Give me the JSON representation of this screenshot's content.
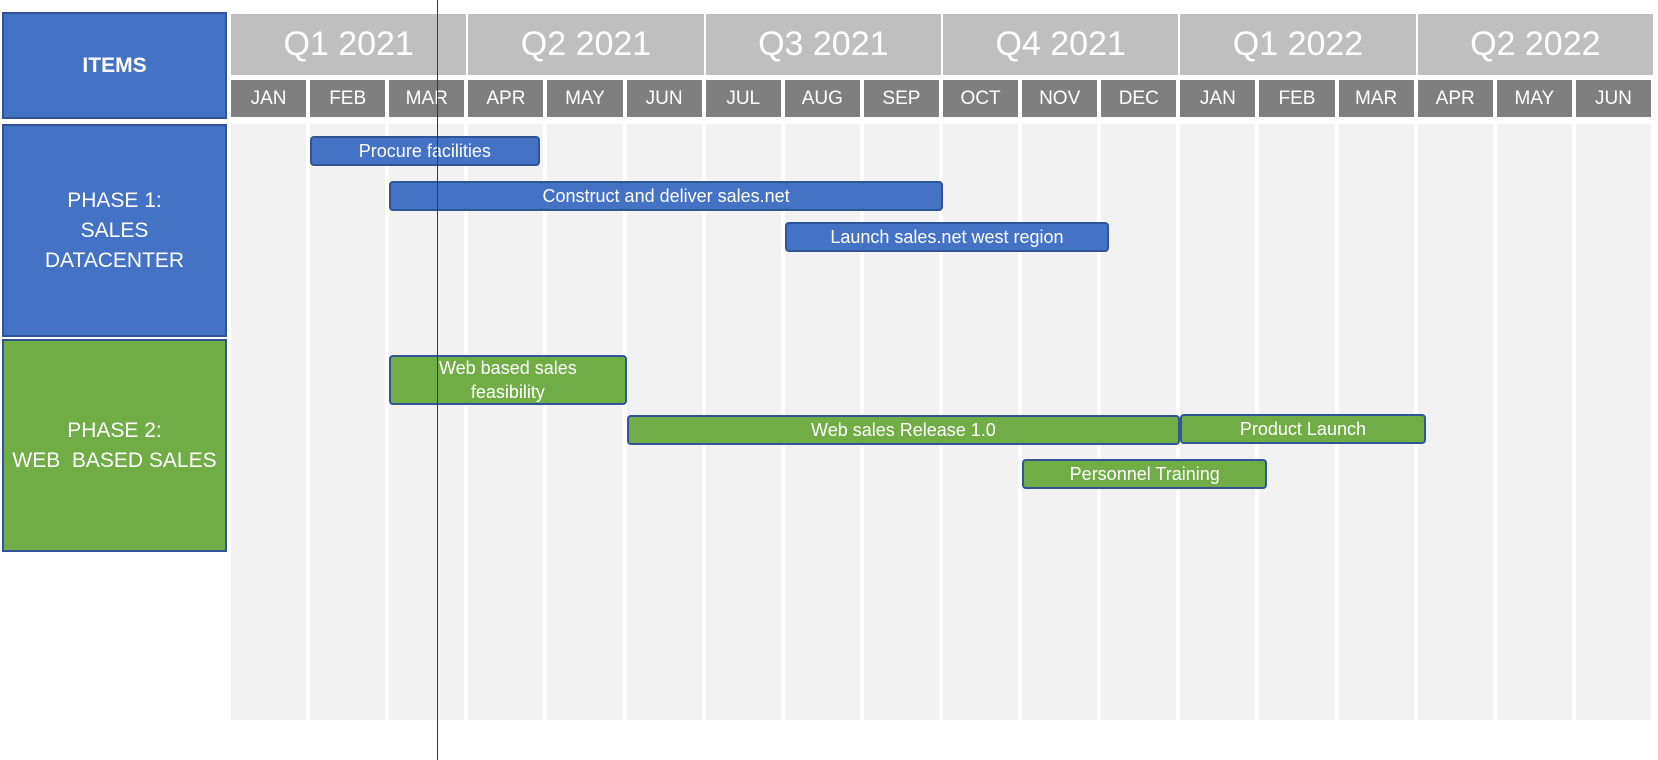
{
  "colors": {
    "blue": "#4472c4",
    "blue_border": "#2f5597",
    "green": "#70ad47",
    "green_border": "#2f5597",
    "quarter_bg": "#bfbfbf",
    "month_bg": "#7f7f7f",
    "column_bg": "#f2f2f2",
    "today_line": "#c00000"
  },
  "items_label": "ITEMS",
  "phases": [
    {
      "label_lines": [
        "PHASE 1:",
        "SALES",
        "DATACENTER"
      ],
      "color": "blue"
    },
    {
      "label_lines": [
        "PHASE 2:",
        "WEB  BASED SALES"
      ],
      "color": "green"
    }
  ],
  "quarters": [
    "Q1 2021",
    "Q2 2021",
    "Q3 2021",
    "Q4 2021",
    "Q1 2022",
    "Q2 2022"
  ],
  "months": [
    "JAN",
    "FEB",
    "MAR",
    "APR",
    "MAY",
    "JUN",
    "JUL",
    "AUG",
    "SEP",
    "OCT",
    "NOV",
    "DEC",
    "JAN",
    "FEB",
    "MAR",
    "APR",
    "MAY",
    "JUN"
  ],
  "tasks": [
    {
      "label": "Procure facilities",
      "phase": 0,
      "start_month": 1,
      "end_month": 3.9
    },
    {
      "label": "Construct and deliver sales.net",
      "phase": 0,
      "start_month": 2,
      "end_month": 9
    },
    {
      "label": "Launch sales.net west region",
      "phase": 0,
      "start_month": 7,
      "end_month": 11.1
    },
    {
      "label": "Web based sales feasibility",
      "phase": 1,
      "start_month": 2,
      "end_month": 5
    },
    {
      "label": "Web sales Release 1.0",
      "phase": 1,
      "start_month": 5,
      "end_month": 12
    },
    {
      "label": "Product Launch",
      "phase": 1,
      "start_month": 12,
      "end_month": 15.1
    },
    {
      "label": "Personnel Training",
      "phase": 1,
      "start_month": 10,
      "end_month": 13.1
    }
  ],
  "today_month": 2.6
}
